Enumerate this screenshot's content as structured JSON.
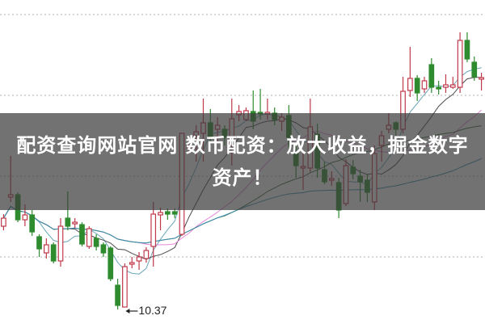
{
  "banner": {
    "title": "配资查询网站官网 数币配资：放大收益，掘金数字资产！"
  },
  "chart_data": {
    "type": "candlestick",
    "title": "",
    "grid": true,
    "colors": {
      "up": "#c0394b",
      "down": "#2e8b2e",
      "ma5": "#6aa6b8",
      "ma10": "#4a4a4a",
      "ma20": "#e48ad8",
      "ma30": "#3f6b3a",
      "ma60": "#3a8db0",
      "grid": "#b0b0b0"
    },
    "ylim": [
      10.19,
      14.2
    ],
    "gridlines": [
      14.02,
      13.02,
      12.02,
      11.02
    ],
    "annotation": {
      "label": "10.37",
      "value": 10.37,
      "candle_index": 16
    },
    "moving_averages": [
      5,
      10,
      20,
      30,
      60
    ],
    "candles_ohlc": [
      [
        11.4,
        11.55,
        11.35,
        11.5
      ],
      [
        11.76,
        12.27,
        11.7,
        11.79
      ],
      [
        11.79,
        11.82,
        11.45,
        11.48
      ],
      [
        11.48,
        11.67,
        11.4,
        11.54
      ],
      [
        11.54,
        11.6,
        11.28,
        11.33
      ],
      [
        11.27,
        11.3,
        11.02,
        11.12
      ],
      [
        11.07,
        11.25,
        11.0,
        11.17
      ],
      [
        11.17,
        11.2,
        10.94,
        10.97
      ],
      [
        10.97,
        11.5,
        10.9,
        11.4
      ],
      [
        11.5,
        11.83,
        11.35,
        11.4
      ],
      [
        11.43,
        11.5,
        11.38,
        11.45
      ],
      [
        11.42,
        11.45,
        11.15,
        11.18
      ],
      [
        11.15,
        11.4,
        11.12,
        11.37
      ],
      [
        11.25,
        11.3,
        11.1,
        11.15
      ],
      [
        11.17,
        11.2,
        11.02,
        11.07
      ],
      [
        11.13,
        11.15,
        10.72,
        10.75
      ],
      [
        10.67,
        10.75,
        10.37,
        10.42
      ],
      [
        10.4,
        10.94,
        10.4,
        10.9
      ],
      [
        10.93,
        11.02,
        10.88,
        10.95
      ],
      [
        10.97,
        11.08,
        10.86,
        11.02
      ],
      [
        11.0,
        11.14,
        10.95,
        11.1
      ],
      [
        11.15,
        11.7,
        10.9,
        11.55
      ],
      [
        11.54,
        11.63,
        11.35,
        11.57
      ],
      [
        11.58,
        11.62,
        11.48,
        11.55
      ],
      [
        11.58,
        11.62,
        11.5,
        11.55
      ],
      [
        11.3,
        12.55,
        11.28,
        12.55
      ],
      [
        12.37,
        12.5,
        12.3,
        12.4
      ],
      [
        12.52,
        12.65,
        12.2,
        12.57
      ],
      [
        12.55,
        12.98,
        12.2,
        12.68
      ],
      [
        12.68,
        12.85,
        12.4,
        12.5
      ],
      [
        12.6,
        12.75,
        12.45,
        12.65
      ],
      [
        12.6,
        12.65,
        12.4,
        12.5
      ],
      [
        12.4,
        12.98,
        12.15,
        12.73
      ],
      [
        12.78,
        12.9,
        12.7,
        12.82
      ],
      [
        12.72,
        12.87,
        12.7,
        12.83
      ],
      [
        12.82,
        13.08,
        12.6,
        12.7
      ],
      [
        12.81,
        13.1,
        12.72,
        12.79
      ],
      [
        12.79,
        12.98,
        12.72,
        12.81
      ],
      [
        12.8,
        12.87,
        12.65,
        12.72
      ],
      [
        12.7,
        12.8,
        12.58,
        12.75
      ],
      [
        12.77,
        12.9,
        12.3,
        12.5
      ],
      [
        12.3,
        12.4,
        12.0,
        12.15
      ],
      [
        12.12,
        12.3,
        11.85,
        12.14
      ],
      [
        12.12,
        12.98,
        12.07,
        12.63
      ],
      [
        12.54,
        12.67,
        12.0,
        12.12
      ],
      [
        12.1,
        12.2,
        11.92,
        11.95
      ],
      [
        11.97,
        12.08,
        11.9,
        11.99
      ],
      [
        11.94,
        12.0,
        11.5,
        11.6
      ],
      [
        11.68,
        12.23,
        11.65,
        12.15
      ],
      [
        12.13,
        12.22,
        11.98,
        12.05
      ],
      [
        12.02,
        12.1,
        11.7,
        11.95
      ],
      [
        11.97,
        12.05,
        11.7,
        11.82
      ],
      [
        11.7,
        12.4,
        11.6,
        12.3
      ],
      [
        12.4,
        12.58,
        12.2,
        12.52
      ],
      [
        12.6,
        12.8,
        12.55,
        12.65
      ],
      [
        12.68,
        12.7,
        12.52,
        12.6
      ],
      [
        12.6,
        13.25,
        12.55,
        13.07
      ],
      [
        13.08,
        13.62,
        13.0,
        13.23
      ],
      [
        13.23,
        13.27,
        12.95,
        13.05
      ],
      [
        13.1,
        13.25,
        13.05,
        13.2
      ],
      [
        13.4,
        13.48,
        13.05,
        13.12
      ],
      [
        13.12,
        13.2,
        13.03,
        13.1
      ],
      [
        13.12,
        13.28,
        13.05,
        13.15
      ],
      [
        13.12,
        13.25,
        13.1,
        13.15
      ],
      [
        13.12,
        13.8,
        13.05,
        13.7
      ],
      [
        13.7,
        13.8,
        13.43,
        13.47
      ],
      [
        13.43,
        13.5,
        13.2,
        13.25
      ],
      [
        13.22,
        13.3,
        13.08,
        13.24
      ]
    ]
  }
}
